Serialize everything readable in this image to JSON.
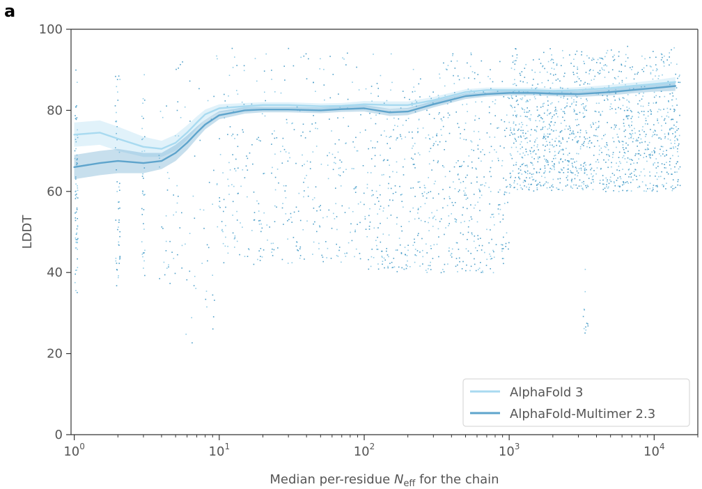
{
  "panel_label": "a",
  "chart_data": {
    "type": "scatter",
    "xscale": "log",
    "xlim": [
      0.95,
      20000
    ],
    "ylim": [
      0,
      100
    ],
    "grid": false,
    "legend_placement": "lower-right",
    "ylabel": "LDDT",
    "xlabel": {
      "before": "Median per-residue ",
      "symbol": "N",
      "subscript": "eff",
      "after": " for the chain"
    },
    "y_ticks": [
      0,
      20,
      40,
      60,
      80,
      100
    ],
    "y_tick_labels": [
      "0",
      "20",
      "40",
      "60",
      "80",
      "100"
    ],
    "x_ticks": [
      {
        "value": 1,
        "base": "10",
        "exp": "0"
      },
      {
        "value": 10,
        "base": "10",
        "exp": "1"
      },
      {
        "value": 100,
        "base": "10",
        "exp": "2"
      },
      {
        "value": 1000,
        "base": "10",
        "exp": "3"
      },
      {
        "value": 10000,
        "base": "10",
        "exp": "4"
      }
    ],
    "series": [
      {
        "name": "AlphaFold 3",
        "color": "#a8daf0",
        "x": [
          1,
          1.5,
          2,
          3,
          4,
          5,
          6,
          7,
          8,
          10,
          15,
          20,
          30,
          50,
          70,
          100,
          150,
          200,
          300,
          500,
          700,
          1000,
          1500,
          2000,
          3000,
          5000,
          7000,
          10000,
          14000
        ],
        "y": [
          74,
          74.5,
          73,
          71,
          70.5,
          72,
          74.5,
          77,
          79,
          80.5,
          81,
          81.3,
          81.3,
          81,
          81.1,
          81.5,
          81.3,
          81.3,
          82.5,
          84.5,
          85,
          85,
          85,
          84.8,
          85,
          85.5,
          86,
          86.5,
          87
        ],
        "ci_half": [
          3,
          3,
          3,
          2.5,
          2,
          2,
          1.8,
          1.5,
          1.2,
          1,
          0.8,
          0.7,
          0.7,
          0.7,
          0.7,
          0.8,
          0.9,
          0.9,
          0.8,
          0.7,
          0.6,
          0.6,
          0.6,
          0.6,
          0.7,
          0.8,
          0.8,
          0.9,
          1.2
        ]
      },
      {
        "name": "AlphaFold-Multimer 2.3",
        "color": "#5ea4cc",
        "x": [
          1,
          1.5,
          2,
          3,
          4,
          5,
          6,
          7,
          8,
          10,
          15,
          20,
          30,
          50,
          70,
          100,
          150,
          200,
          300,
          500,
          700,
          1000,
          1500,
          2000,
          3000,
          5000,
          7000,
          10000,
          14000
        ],
        "y": [
          66,
          67,
          67.5,
          67,
          67.5,
          69.5,
          72,
          74.5,
          76.5,
          78.8,
          80,
          80.2,
          80.2,
          80,
          80.3,
          80.5,
          79.5,
          79.7,
          81.5,
          83.5,
          84,
          84.3,
          84.3,
          84.1,
          84,
          84.5,
          85,
          85.5,
          86
        ],
        "ci_half": [
          3,
          3,
          3,
          2.5,
          2,
          2,
          1.8,
          1.5,
          1.2,
          1,
          0.8,
          0.7,
          0.7,
          0.7,
          0.7,
          0.8,
          0.9,
          0.9,
          0.8,
          0.7,
          0.6,
          0.6,
          0.6,
          0.6,
          0.7,
          0.8,
          0.8,
          0.9,
          1.2
        ]
      }
    ],
    "scatter_color": "#4e9fc9",
    "scatter_clusters": [
      {
        "x_min": 1,
        "x_max": 1.05,
        "y_min": 35,
        "y_max": 92,
        "count": 70
      },
      {
        "x_min": 1.9,
        "x_max": 2.05,
        "y_min": 35,
        "y_max": 93,
        "count": 50
      },
      {
        "x_min": 2.9,
        "x_max": 3.05,
        "y_min": 38,
        "y_max": 92,
        "count": 35
      },
      {
        "x_min": 3.8,
        "x_max": 5.5,
        "y_min": 37,
        "y_max": 94,
        "count": 45
      },
      {
        "x_min": 5.5,
        "x_max": 9.5,
        "y_min": 21,
        "y_max": 93,
        "count": 40
      },
      {
        "x_min": 9.5,
        "x_max": 100,
        "y_min": 42,
        "y_max": 96,
        "count": 380
      },
      {
        "x_min": 100,
        "x_max": 1000,
        "y_min": 40,
        "y_max": 95,
        "count": 650
      },
      {
        "x_min": 1000,
        "x_max": 15000,
        "y_min": 60,
        "y_max": 96,
        "count": 1300
      },
      {
        "x_min": 3200,
        "x_max": 3500,
        "y_min": 25,
        "y_max": 43,
        "count": 12
      }
    ]
  }
}
